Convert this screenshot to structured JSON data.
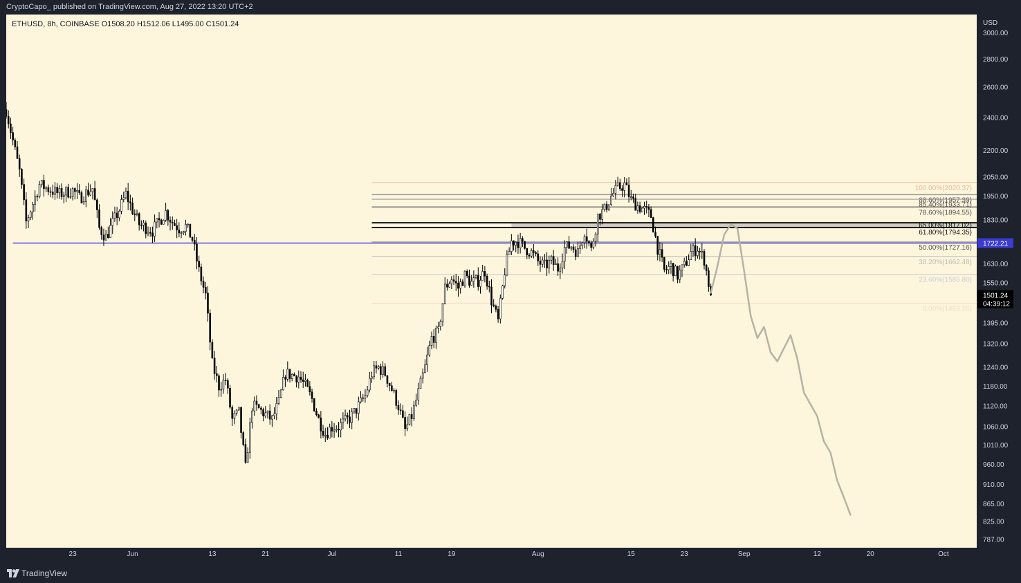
{
  "header": {
    "publish_line": "CryptoCapo_ published on TradingView.com, Aug 27, 2022 13:20 UTC+2"
  },
  "footer": {
    "brand": "TradingView"
  },
  "chart_data": {
    "type": "candlestick",
    "symbol_line": {
      "symbol": "ETHUSD, 8h, COINBASE",
      "open": "O1508.20",
      "high": "H1512.06",
      "low": "L1495.00",
      "close": "C1501.24"
    },
    "y_axis": {
      "currency": "USD",
      "scale": "log",
      "range": [
        770,
        3150
      ],
      "ticks": [
        3000,
        2800,
        2600,
        2400,
        2200,
        2050,
        1950,
        1830,
        1630,
        1550,
        1395,
        1320,
        1240,
        1180,
        1120,
        1060,
        1010,
        960,
        910,
        865,
        825,
        787
      ]
    },
    "x_axis": {
      "range": [
        "2022-05-13",
        "2022-10-06"
      ],
      "ticks": [
        {
          "date": "2022-05-23",
          "label": "23"
        },
        {
          "date": "2022-06-01",
          "label": "Jun"
        },
        {
          "date": "2022-06-13",
          "label": "13"
        },
        {
          "date": "2022-06-21",
          "label": "21"
        },
        {
          "date": "2022-07-01",
          "label": "Jul"
        },
        {
          "date": "2022-07-11",
          "label": "11"
        },
        {
          "date": "2022-07-19",
          "label": "19"
        },
        {
          "date": "2022-08-01",
          "label": "Aug"
        },
        {
          "date": "2022-08-15",
          "label": "15"
        },
        {
          "date": "2022-08-23",
          "label": "23"
        },
        {
          "date": "2022-09-01",
          "label": "Sep"
        },
        {
          "date": "2022-09-12",
          "label": "12"
        },
        {
          "date": "2022-09-20",
          "label": "20"
        },
        {
          "date": "2022-10-01",
          "label": "Oct"
        }
      ]
    },
    "price_path": [
      [
        "2022-05-13",
        2450
      ],
      [
        "2022-05-15",
        2080
      ],
      [
        "2022-05-16",
        1820
      ],
      [
        "2022-05-18",
        2010
      ],
      [
        "2022-05-21",
        1960
      ],
      [
        "2022-05-23",
        1980
      ],
      [
        "2022-05-24",
        1940
      ],
      [
        "2022-05-26",
        1990
      ],
      [
        "2022-05-27",
        1790
      ],
      [
        "2022-05-28",
        1750
      ],
      [
        "2022-05-30",
        1880
      ],
      [
        "2022-05-31",
        1960
      ],
      [
        "2022-06-01",
        1880
      ],
      [
        "2022-06-02",
        1810
      ],
      [
        "2022-06-04",
        1780
      ],
      [
        "2022-06-06",
        1870
      ],
      [
        "2022-06-07",
        1820
      ],
      [
        "2022-06-08",
        1790
      ],
      [
        "2022-06-09",
        1800
      ],
      [
        "2022-06-10",
        1740
      ],
      [
        "2022-06-11",
        1600
      ],
      [
        "2022-06-12",
        1500
      ],
      [
        "2022-06-13",
        1250
      ],
      [
        "2022-06-14",
        1180
      ],
      [
        "2022-06-15",
        1200
      ],
      [
        "2022-06-16",
        1080
      ],
      [
        "2022-06-17",
        1100
      ],
      [
        "2022-06-18",
        950
      ],
      [
        "2022-06-19",
        1120
      ],
      [
        "2022-06-20",
        1110
      ],
      [
        "2022-06-22",
        1080
      ],
      [
        "2022-06-23",
        1130
      ],
      [
        "2022-06-24",
        1220
      ],
      [
        "2022-06-26",
        1210
      ],
      [
        "2022-06-27",
        1180
      ],
      [
        "2022-06-28",
        1140
      ],
      [
        "2022-06-29",
        1080
      ],
      [
        "2022-06-30",
        1040
      ],
      [
        "2022-07-01",
        1060
      ],
      [
        "2022-07-02",
        1060
      ],
      [
        "2022-07-04",
        1090
      ],
      [
        "2022-07-05",
        1120
      ],
      [
        "2022-07-06",
        1150
      ],
      [
        "2022-07-07",
        1220
      ],
      [
        "2022-07-08",
        1240
      ],
      [
        "2022-07-09",
        1220
      ],
      [
        "2022-07-10",
        1170
      ],
      [
        "2022-07-11",
        1120
      ],
      [
        "2022-07-12",
        1050
      ],
      [
        "2022-07-13",
        1090
      ],
      [
        "2022-07-14",
        1160
      ],
      [
        "2022-07-15",
        1240
      ],
      [
        "2022-07-16",
        1340
      ],
      [
        "2022-07-17",
        1360
      ],
      [
        "2022-07-18",
        1530
      ],
      [
        "2022-07-19",
        1570
      ],
      [
        "2022-07-20",
        1530
      ],
      [
        "2022-07-21",
        1580
      ],
      [
        "2022-07-22",
        1550
      ],
      [
        "2022-07-23",
        1560
      ],
      [
        "2022-07-24",
        1600
      ],
      [
        "2022-07-25",
        1480
      ],
      [
        "2022-07-26",
        1400
      ],
      [
        "2022-07-27",
        1600
      ],
      [
        "2022-07-28",
        1730
      ],
      [
        "2022-07-29",
        1730
      ],
      [
        "2022-07-30",
        1700
      ],
      [
        "2022-07-31",
        1680
      ],
      [
        "2022-08-01",
        1640
      ],
      [
        "2022-08-02",
        1620
      ],
      [
        "2022-08-03",
        1640
      ],
      [
        "2022-08-04",
        1610
      ],
      [
        "2022-08-05",
        1700
      ],
      [
        "2022-08-06",
        1710
      ],
      [
        "2022-08-07",
        1680
      ],
      [
        "2022-08-08",
        1780
      ],
      [
        "2022-08-09",
        1690
      ],
      [
        "2022-08-10",
        1850
      ],
      [
        "2022-08-11",
        1880
      ],
      [
        "2022-08-12",
        1950
      ],
      [
        "2022-08-13",
        1990
      ],
      [
        "2022-08-14",
        2010
      ],
      [
        "2022-08-15",
        1930
      ],
      [
        "2022-08-16",
        1900
      ],
      [
        "2022-08-17",
        1880
      ],
      [
        "2022-08-18",
        1850
      ],
      [
        "2022-08-19",
        1700
      ],
      [
        "2022-08-20",
        1600
      ],
      [
        "2022-08-21",
        1620
      ],
      [
        "2022-08-22",
        1580
      ],
      [
        "2022-08-23",
        1620
      ],
      [
        "2022-08-24",
        1680
      ],
      [
        "2022-08-25",
        1700
      ],
      [
        "2022-08-26",
        1650
      ],
      [
        "2022-08-27",
        1501
      ]
    ],
    "fibonacci": {
      "start_date": "2022-07-07",
      "levels": [
        {
          "label": "100.00%(2020.37)",
          "value": 2020.37,
          "color": "#e8b89a",
          "width": 1
        },
        {
          "label": "88.60%(1957.39)",
          "value": 1957.39,
          "color": "#9a9a9a",
          "width": 1.4
        },
        {
          "label": "85.40%(1933.71)",
          "value": 1933.71,
          "color": "#9a9a9a",
          "width": 1.2
        },
        {
          "label": "78.60%(1894.55)",
          "value": 1894.55,
          "color": "#555555",
          "width": 1.2
        },
        {
          "label": "65.00%(1817.02)",
          "value": 1817.02,
          "color": "#111111",
          "width": 2
        },
        {
          "label": "61.80%(1794.35)",
          "value": 1794.35,
          "color": "#111111",
          "width": 2
        },
        {
          "label": "50.00%(1727.16)",
          "value": 1727.16,
          "color": "#9a9a9a",
          "width": 1.2
        },
        {
          "label": "38.20%(1662.48)",
          "value": 1662.48,
          "color": "#bbbbbb",
          "width": 1
        },
        {
          "label": "23.60%(1585.80)",
          "value": 1585.8,
          "color": "#c9cdd3",
          "width": 1
        },
        {
          "label": "0.00%(1469.26)",
          "value": 1469.26,
          "color": "#f3dcc4",
          "width": 1
        }
      ]
    },
    "support_line": {
      "value": 1722.21,
      "label": "1722.21",
      "color": "#3b3bd1",
      "start_date": "2022-05-14"
    },
    "resistance_zone": {
      "start_date": "2022-07-28",
      "low": 1794.35,
      "high": 1817.02
    },
    "last_price": {
      "value": 1501.24,
      "label": "1501.24",
      "countdown": "04:39:12"
    },
    "projection": [
      [
        "2022-08-27",
        1510
      ],
      [
        "2022-08-28",
        1620
      ],
      [
        "2022-08-29",
        1760
      ],
      [
        "2022-08-30",
        1810
      ],
      [
        "2022-08-31",
        1790
      ],
      [
        "2022-09-01",
        1600
      ],
      [
        "2022-09-02",
        1420
      ],
      [
        "2022-09-03",
        1340
      ],
      [
        "2022-09-04",
        1380
      ],
      [
        "2022-09-05",
        1290
      ],
      [
        "2022-09-06",
        1260
      ],
      [
        "2022-09-08",
        1350
      ],
      [
        "2022-09-09",
        1270
      ],
      [
        "2022-09-10",
        1160
      ],
      [
        "2022-09-12",
        1090
      ],
      [
        "2022-09-13",
        1020
      ],
      [
        "2022-09-14",
        990
      ],
      [
        "2022-09-15",
        920
      ],
      [
        "2022-09-16",
        880
      ],
      [
        "2022-09-17",
        840
      ]
    ],
    "colors": {
      "background": "#fdf5dc",
      "axis_panel": "#1e222d",
      "axis_text": "#d1d4dc",
      "candle_up": "#ffffff",
      "candle_down": "#000000",
      "projection": "#b5b3a6"
    }
  }
}
